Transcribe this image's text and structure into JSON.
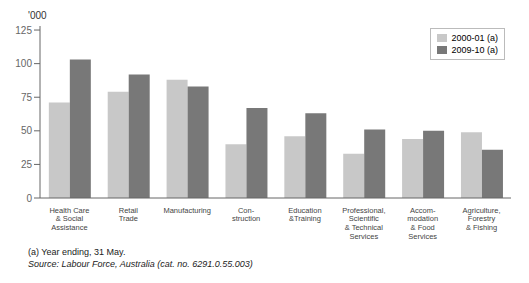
{
  "chart_data": {
    "type": "bar",
    "categories": [
      "Health Care\n& Social\nAssistance",
      "Retail\nTrade",
      "Manufacturing",
      "Con-\nstruction",
      "Education\n&Training",
      "Professional,\nScientific\n& Technical\nServices",
      "Accom-\nmodation\n& Food\nServices",
      "Agriculture,\nForestry\n& Fishing"
    ],
    "series": [
      {
        "name": "2000-01 (a)",
        "color": "#c8c8c8",
        "values": [
          71,
          79,
          88,
          40,
          46,
          33,
          44,
          49
        ]
      },
      {
        "name": "2009-10 (a)",
        "color": "#787878",
        "values": [
          103,
          92,
          83,
          67,
          63,
          51,
          50,
          36
        ]
      }
    ],
    "ylabel": "'000",
    "ylim": [
      0,
      128
    ],
    "yticks": [
      0,
      25,
      50,
      75,
      100,
      125
    ],
    "legend": "upper right",
    "grid": false,
    "annotations": [
      "(a) Year ending, 31 May.",
      "Source: Labour Force, Australia (cat. no. 6291.0.55.003)"
    ]
  }
}
